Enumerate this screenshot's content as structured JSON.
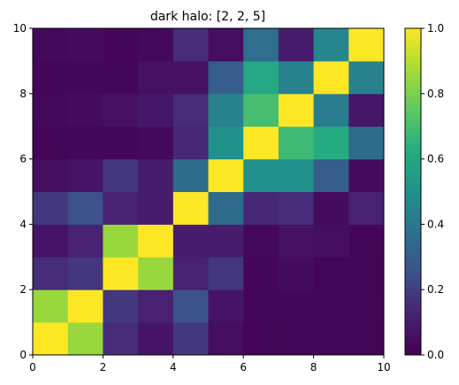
{
  "chart_data": {
    "type": "heatmap",
    "title": "dark halo: [2, 2, 5]",
    "xlabel": "",
    "ylabel": "",
    "xlim": [
      0,
      10
    ],
    "ylim": [
      0,
      10
    ],
    "x_ticks": [
      "0",
      "2",
      "4",
      "6",
      "8",
      "10"
    ],
    "y_ticks": [
      "0",
      "2",
      "4",
      "6",
      "8",
      "10"
    ],
    "colorbar": {
      "range": [
        0.0,
        1.0
      ],
      "ticks": [
        "0.0",
        "0.2",
        "0.4",
        "0.6",
        "0.8",
        "1.0"
      ],
      "colormap": "viridis"
    },
    "grid": false,
    "rows_bottom_to_top": [
      [
        1.0,
        0.85,
        0.15,
        0.07,
        0.18,
        0.05,
        0.01,
        0.01,
        0.01,
        0.01
      ],
      [
        0.85,
        1.0,
        0.18,
        0.12,
        0.25,
        0.07,
        0.02,
        0.02,
        0.02,
        0.02
      ],
      [
        0.15,
        0.18,
        1.0,
        0.85,
        0.12,
        0.18,
        0.02,
        0.04,
        0.01,
        0.01
      ],
      [
        0.07,
        0.12,
        0.85,
        1.0,
        0.1,
        0.1,
        0.03,
        0.06,
        0.05,
        0.02
      ],
      [
        0.18,
        0.25,
        0.12,
        0.1,
        1.0,
        0.35,
        0.14,
        0.15,
        0.04,
        0.12
      ],
      [
        0.05,
        0.07,
        0.18,
        0.1,
        0.35,
        1.0,
        0.5,
        0.5,
        0.3,
        0.04
      ],
      [
        0.01,
        0.02,
        0.02,
        0.03,
        0.14,
        0.5,
        1.0,
        0.68,
        0.62,
        0.35
      ],
      [
        0.03,
        0.04,
        0.06,
        0.08,
        0.15,
        0.44,
        0.7,
        1.0,
        0.42,
        0.08
      ],
      [
        0.02,
        0.02,
        0.02,
        0.06,
        0.06,
        0.3,
        0.6,
        0.44,
        1.0,
        0.44
      ],
      [
        0.03,
        0.04,
        0.02,
        0.03,
        0.15,
        0.05,
        0.36,
        0.1,
        0.46,
        1.0
      ]
    ]
  }
}
